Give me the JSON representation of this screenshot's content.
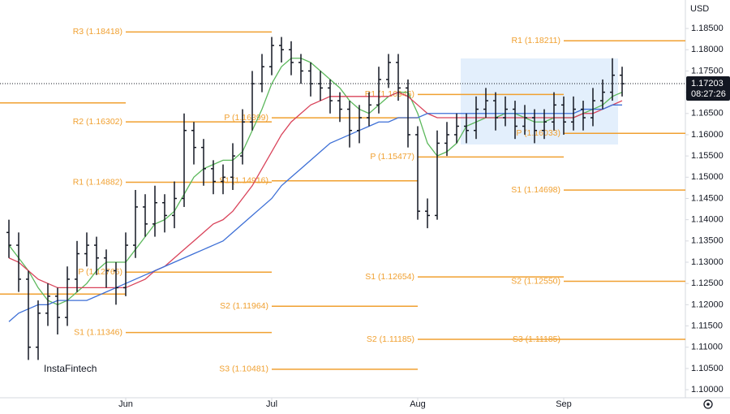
{
  "chart_data": {
    "type": "ohlc",
    "currency": "USD",
    "watermark": "InstaFintech",
    "last_price": 1.17203,
    "countdown": "08:27:26",
    "ylim": [
      1.0981,
      1.1917
    ],
    "yticks": [
      {
        "value": 1.1,
        "label": "1.10000"
      },
      {
        "value": 1.105,
        "label": "1.10500"
      },
      {
        "value": 1.11,
        "label": "1.11000"
      },
      {
        "value": 1.115,
        "label": "1.11500"
      },
      {
        "value": 1.12,
        "label": "1.12000"
      },
      {
        "value": 1.125,
        "label": "1.12500"
      },
      {
        "value": 1.13,
        "label": "1.13000"
      },
      {
        "value": 1.135,
        "label": "1.13500"
      },
      {
        "value": 1.14,
        "label": "1.14000"
      },
      {
        "value": 1.145,
        "label": "1.14500"
      },
      {
        "value": 1.15,
        "label": "1.15000"
      },
      {
        "value": 1.155,
        "label": "1.15500"
      },
      {
        "value": 1.16,
        "label": "1.16000"
      },
      {
        "value": 1.165,
        "label": "1.16500"
      },
      {
        "value": 1.17,
        "label": "1.17000"
      },
      {
        "value": 1.175,
        "label": "1.17500"
      },
      {
        "value": 1.18,
        "label": "1.18000"
      },
      {
        "value": 1.185,
        "label": "1.18500"
      }
    ],
    "categories": [
      null,
      null,
      null,
      null,
      null,
      null,
      null,
      null,
      null,
      null,
      null,
      null,
      "Jun",
      null,
      null,
      null,
      null,
      null,
      null,
      null,
      null,
      null,
      null,
      null,
      null,
      null,
      null,
      "Jul",
      null,
      null,
      null,
      null,
      null,
      null,
      null,
      null,
      null,
      null,
      null,
      null,
      null,
      null,
      "Aug",
      null,
      null,
      null,
      null,
      null,
      null,
      null,
      null,
      null,
      null,
      null,
      null,
      null,
      null,
      "Sep",
      null,
      null,
      null,
      null,
      null,
      null
    ],
    "ohlc": [
      [
        1.137,
        1.14,
        1.131,
        1.134
      ],
      [
        1.134,
        1.137,
        1.123,
        1.126
      ],
      [
        1.126,
        1.128,
        1.107,
        1.11
      ],
      [
        1.11,
        1.121,
        1.107,
        1.118
      ],
      [
        1.118,
        1.125,
        1.115,
        1.122
      ],
      [
        1.122,
        1.124,
        1.113,
        1.117
      ],
      [
        1.117,
        1.129,
        1.115,
        1.126
      ],
      [
        1.126,
        1.135,
        1.123,
        1.132
      ],
      [
        1.132,
        1.137,
        1.129,
        1.134
      ],
      [
        1.134,
        1.136,
        1.127,
        1.131
      ],
      [
        1.131,
        1.133,
        1.124,
        1.128
      ],
      [
        1.128,
        1.13,
        1.12,
        1.124
      ],
      [
        1.124,
        1.137,
        1.122,
        1.134
      ],
      [
        1.134,
        1.147,
        1.131,
        1.143
      ],
      [
        1.143,
        1.146,
        1.136,
        1.139
      ],
      [
        1.139,
        1.148,
        1.136,
        1.144
      ],
      [
        1.144,
        1.146,
        1.137,
        1.141
      ],
      [
        1.141,
        1.149,
        1.138,
        1.145
      ],
      [
        1.145,
        1.165,
        1.143,
        1.161
      ],
      [
        1.161,
        1.163,
        1.153,
        1.157
      ],
      [
        1.157,
        1.159,
        1.148,
        1.152
      ],
      [
        1.152,
        1.154,
        1.146,
        1.149
      ],
      [
        1.149,
        1.153,
        1.146,
        1.15
      ],
      [
        1.15,
        1.158,
        1.147,
        1.155
      ],
      [
        1.155,
        1.166,
        1.153,
        1.163
      ],
      [
        1.163,
        1.175,
        1.161,
        1.172
      ],
      [
        1.172,
        1.179,
        1.17,
        1.176
      ],
      [
        1.176,
        1.183,
        1.174,
        1.181
      ],
      [
        1.181,
        1.183,
        1.177,
        1.18
      ],
      [
        1.18,
        1.182,
        1.174,
        1.177
      ],
      [
        1.177,
        1.179,
        1.172,
        1.175
      ],
      [
        1.175,
        1.177,
        1.169,
        1.172
      ],
      [
        1.172,
        1.175,
        1.168,
        1.171
      ],
      [
        1.171,
        1.173,
        1.165,
        1.168
      ],
      [
        1.168,
        1.17,
        1.163,
        1.166
      ],
      [
        1.166,
        1.168,
        1.157,
        1.161
      ],
      [
        1.161,
        1.167,
        1.158,
        1.164
      ],
      [
        1.164,
        1.17,
        1.162,
        1.167
      ],
      [
        1.167,
        1.176,
        1.165,
        1.173
      ],
      [
        1.173,
        1.179,
        1.171,
        1.177
      ],
      [
        1.177,
        1.179,
        1.168,
        1.171
      ],
      [
        1.171,
        1.173,
        1.157,
        1.16
      ],
      [
        1.16,
        1.162,
        1.14,
        1.142
      ],
      [
        1.142,
        1.145,
        1.138,
        1.141
      ],
      [
        1.141,
        1.161,
        1.14,
        1.158
      ],
      [
        1.158,
        1.163,
        1.155,
        1.16
      ],
      [
        1.16,
        1.165,
        1.158,
        1.162
      ],
      [
        1.162,
        1.165,
        1.158,
        1.161
      ],
      [
        1.161,
        1.169,
        1.159,
        1.166
      ],
      [
        1.166,
        1.171,
        1.164,
        1.168
      ],
      [
        1.168,
        1.17,
        1.161,
        1.164
      ],
      [
        1.164,
        1.169,
        1.162,
        1.166
      ],
      [
        1.166,
        1.168,
        1.159,
        1.162
      ],
      [
        1.162,
        1.167,
        1.16,
        1.164
      ],
      [
        1.164,
        1.166,
        1.158,
        1.161
      ],
      [
        1.161,
        1.166,
        1.159,
        1.163
      ],
      [
        1.163,
        1.17,
        1.161,
        1.167
      ],
      [
        1.167,
        1.169,
        1.16,
        1.163
      ],
      [
        1.163,
        1.169,
        1.161,
        1.166
      ],
      [
        1.166,
        1.168,
        1.161,
        1.164
      ],
      [
        1.164,
        1.171,
        1.162,
        1.168
      ],
      [
        1.168,
        1.173,
        1.166,
        1.17
      ],
      [
        1.17,
        1.178,
        1.168,
        1.174
      ],
      [
        1.174,
        1.176,
        1.169,
        1.172
      ]
    ],
    "lines": [
      {
        "color": "#5cb85c",
        "values": [
          1.134,
          1.131,
          1.128,
          1.124,
          1.121,
          1.12,
          1.121,
          1.123,
          1.125,
          1.128,
          1.13,
          1.13,
          1.13,
          1.133,
          1.136,
          1.139,
          1.14,
          1.142,
          1.146,
          1.15,
          1.152,
          1.153,
          1.154,
          1.154,
          1.156,
          1.161,
          1.166,
          1.172,
          1.176,
          1.178,
          1.178,
          1.177,
          1.175,
          1.173,
          1.171,
          1.168,
          1.166,
          1.165,
          1.167,
          1.169,
          1.17,
          1.17,
          1.165,
          1.158,
          1.155,
          1.156,
          1.158,
          1.162,
          1.163,
          1.164,
          1.164,
          1.165,
          1.165,
          1.164,
          1.163,
          1.163,
          1.164,
          1.164,
          1.164,
          1.165,
          1.166,
          1.167,
          1.169,
          1.17
        ]
      },
      {
        "color": "#d9435a",
        "values": [
          1.131,
          1.13,
          1.128,
          1.126,
          1.125,
          1.124,
          1.124,
          1.124,
          1.124,
          1.124,
          1.124,
          1.124,
          1.124,
          1.125,
          1.126,
          1.128,
          1.129,
          1.131,
          1.133,
          1.135,
          1.137,
          1.139,
          1.14,
          1.142,
          1.145,
          1.148,
          1.152,
          1.156,
          1.16,
          1.163,
          1.165,
          1.167,
          1.168,
          1.169,
          1.169,
          1.169,
          1.169,
          1.169,
          1.169,
          1.169,
          1.17,
          1.169,
          1.167,
          1.165,
          1.164,
          1.164,
          1.164,
          1.164,
          1.164,
          1.164,
          1.164,
          1.164,
          1.164,
          1.164,
          1.164,
          1.164,
          1.164,
          1.164,
          1.164,
          1.165,
          1.165,
          1.166,
          1.167,
          1.168
        ]
      },
      {
        "color": "#3d6fd6",
        "values": [
          1.116,
          1.118,
          1.119,
          1.12,
          1.12,
          1.121,
          1.121,
          1.121,
          1.121,
          1.122,
          1.123,
          1.124,
          1.125,
          1.126,
          1.127,
          1.128,
          1.129,
          1.13,
          1.131,
          1.132,
          1.133,
          1.134,
          1.135,
          1.137,
          1.139,
          1.141,
          1.143,
          1.145,
          1.148,
          1.15,
          1.152,
          1.154,
          1.156,
          1.158,
          1.159,
          1.16,
          1.161,
          1.162,
          1.163,
          1.163,
          1.164,
          1.164,
          1.164,
          1.165,
          1.165,
          1.165,
          1.165,
          1.165,
          1.165,
          1.165,
          1.165,
          1.165,
          1.165,
          1.165,
          1.165,
          1.165,
          1.165,
          1.165,
          1.165,
          1.166,
          1.166,
          1.166,
          1.167,
          1.167
        ]
      }
    ],
    "pivot_color": "#f0a030",
    "pivots": [
      {
        "levels": [
          {
            "value": 1.1675
          },
          {
            "value": 1.1225
          }
        ]
      },
      {
        "levels": [
          {
            "label": "R3 (1.18418)",
            "value": 1.18418
          },
          {
            "label": "R2 (1.16302)",
            "value": 1.16302
          },
          {
            "label": "R1 (1.14882)",
            "value": 1.14882
          },
          {
            "label": "P (1.12766)",
            "value": 1.12766
          },
          {
            "label": "S1 (1.11346)",
            "value": 1.11346
          }
        ]
      },
      {
        "levels": [
          {
            "label": "P (1.16399)",
            "value": 1.16399
          },
          {
            "label": "S1 (1.14916)",
            "value": 1.14916
          },
          {
            "label": "S2 (1.11964)",
            "value": 1.11964
          },
          {
            "label": "S3 (1.10481)",
            "value": 1.10481
          }
        ]
      },
      {
        "levels": [
          {
            "label": "R1 (1.16946)",
            "value": 1.16946
          },
          {
            "label": "P (1.15477)",
            "value": 1.15477
          },
          {
            "label": "S1 (1.12654)",
            "value": 1.12654
          },
          {
            "label": "S2 (1.11185)",
            "value": 1.11185
          }
        ]
      },
      {
        "levels": [
          {
            "label": "R1 (1.18211)",
            "value": 1.18211
          },
          {
            "label": "P (1.16033)",
            "value": 1.16033
          },
          {
            "label": "S1 (1.14698)",
            "value": 1.14698
          },
          {
            "label": "S2 (1.12550)",
            "value": 1.1255
          },
          {
            "label": "S3 (1.11185)",
            "value": 1.11185
          }
        ]
      }
    ]
  }
}
